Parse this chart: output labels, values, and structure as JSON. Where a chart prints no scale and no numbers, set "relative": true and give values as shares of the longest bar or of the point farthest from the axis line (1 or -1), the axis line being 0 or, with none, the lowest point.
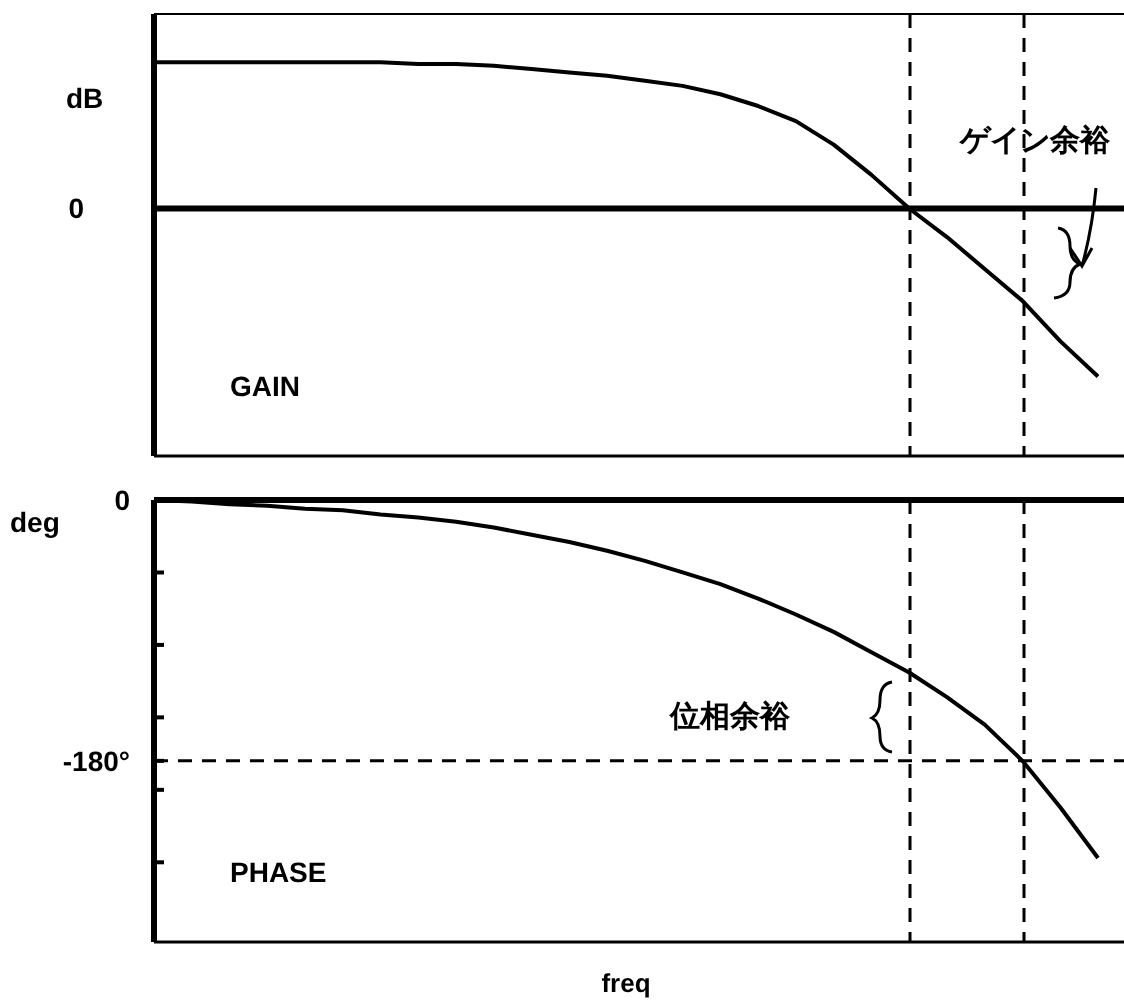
{
  "chart_data": [
    {
      "type": "line",
      "relative": true,
      "title": "GAIN",
      "ylabel": "dB",
      "categories": [
        null,
        null,
        null,
        null,
        null,
        null,
        null,
        null,
        null,
        null,
        null,
        null,
        null,
        null,
        null,
        null,
        null,
        null,
        null,
        null,
        null,
        null,
        null,
        null,
        null,
        null
      ],
      "series": [
        {
          "color": "#000000",
          "values": [
            0.87,
            0.87,
            0.87,
            0.87,
            0.87,
            0.87,
            0.87,
            0.86,
            0.86,
            0.85,
            0.83,
            0.81,
            0.79,
            0.76,
            0.73,
            0.68,
            0.61,
            0.52,
            0.38,
            0.2,
            0,
            -0.17,
            -0.36,
            -0.55,
            -0.79,
            -1
          ]
        }
      ],
      "annotations": [
        "0",
        "ゲイン余裕"
      ],
      "marker": "none",
      "line_style": "solid",
      "grid": false,
      "tick_labels": "y"
    },
    {
      "type": "line",
      "title": "PHASE",
      "ylabel": "deg",
      "xlabel": "freq",
      "categories": [
        null,
        null,
        null,
        null,
        null,
        null,
        null,
        null,
        null,
        null,
        null,
        null,
        null,
        null,
        null,
        null,
        null,
        null,
        null,
        null,
        null,
        null,
        null,
        null,
        null,
        null
      ],
      "series": [
        {
          "color": "#000000",
          "values": [
            0,
            -1,
            -3,
            -4,
            -6,
            -7,
            -10,
            -12,
            -15,
            -19,
            -24,
            -29,
            -35,
            -42,
            -50,
            -58,
            -68,
            -79,
            -91,
            -105,
            -119,
            -136,
            -155,
            -180,
            -212,
            -247
          ]
        }
      ],
      "ylim": [
        -305,
        0
      ],
      "yticks": [
        0,
        {
          "value": -50,
          "label": null
        },
        {
          "value": -100,
          "label": null
        },
        {
          "value": -150,
          "label": null
        },
        {
          "value": -180,
          "label": "-180°"
        },
        {
          "value": -200,
          "label": null
        },
        {
          "value": -250,
          "label": null
        }
      ],
      "ref_lines": [
        {
          "axis": "y",
          "value": -180,
          "line_style": "dashed"
        }
      ],
      "annotations": [
        "位相余裕"
      ],
      "marker": "none",
      "line_style": "solid",
      "grid": false,
      "tick_labels": "y"
    }
  ]
}
